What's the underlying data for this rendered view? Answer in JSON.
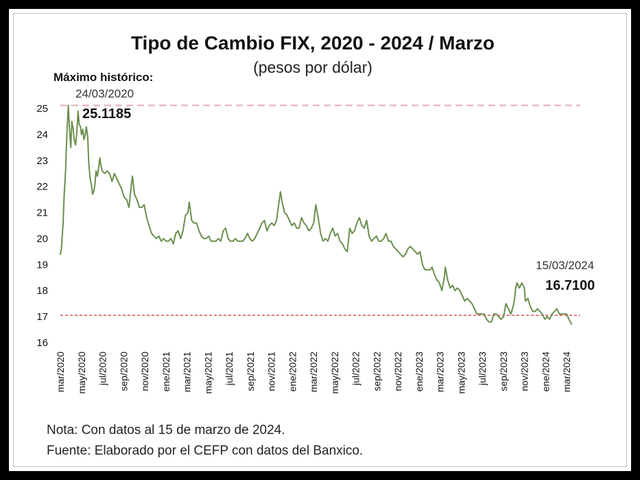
{
  "chart_data": {
    "type": "line",
    "title": "Tipo de Cambio FIX, 2020 - 2024 / Marzo",
    "subtitle": "(pesos por dólar)",
    "xlabel": "",
    "ylabel": "",
    "ylim": [
      16,
      25.3
    ],
    "yticks": [
      "16",
      "17",
      "18",
      "19",
      "20",
      "21",
      "22",
      "23",
      "24",
      "25"
    ],
    "grid": false,
    "legend": "none",
    "x_tick_labels": [
      "mar/2020",
      "may/2020",
      "jul/2020",
      "sep/2020",
      "nov/2020",
      "ene/2021",
      "mar/2021",
      "may/2021",
      "jul/2021",
      "sep/2021",
      "nov/2021",
      "ene/2022",
      "mar/2022",
      "may/2022",
      "jul/2022",
      "sep/2022",
      "nov/2022",
      "ene/2023",
      "mar/2023",
      "may/2023",
      "jul/2023",
      "sep/2023",
      "nov/2023",
      "ene/2024",
      "mar/2024"
    ],
    "series": [
      {
        "color": "#6b8f4e",
        "points": [
          [
            "2020-03-01",
            19.4
          ],
          [
            "2020-03-04",
            19.6
          ],
          [
            "2020-03-09",
            20.6
          ],
          [
            "2020-03-12",
            21.7
          ],
          [
            "2020-03-16",
            22.6
          ],
          [
            "2020-03-20",
            24.1
          ],
          [
            "2020-03-24",
            25.1185
          ],
          [
            "2020-03-27",
            24.3
          ],
          [
            "2020-03-31",
            23.5
          ],
          [
            "2020-04-03",
            24.5
          ],
          [
            "2020-04-07",
            24.2
          ],
          [
            "2020-04-10",
            23.8
          ],
          [
            "2020-04-14",
            23.6
          ],
          [
            "2020-04-17",
            24.0
          ],
          [
            "2020-04-21",
            24.9
          ],
          [
            "2020-04-24",
            24.4
          ],
          [
            "2020-04-28",
            24.3
          ],
          [
            "2020-05-01",
            24.0
          ],
          [
            "2020-05-05",
            24.2
          ],
          [
            "2020-05-08",
            23.8
          ],
          [
            "2020-05-12",
            24.0
          ],
          [
            "2020-05-15",
            24.3
          ],
          [
            "2020-05-19",
            23.9
          ],
          [
            "2020-05-22",
            22.9
          ],
          [
            "2020-05-26",
            22.3
          ],
          [
            "2020-05-29",
            22.1
          ],
          [
            "2020-06-02",
            21.7
          ],
          [
            "2020-06-05",
            21.8
          ],
          [
            "2020-06-09",
            22.1
          ],
          [
            "2020-06-12",
            22.6
          ],
          [
            "2020-06-16",
            22.4
          ],
          [
            "2020-06-19",
            22.7
          ],
          [
            "2020-06-23",
            23.1
          ],
          [
            "2020-06-26",
            22.8
          ],
          [
            "2020-06-30",
            22.6
          ],
          [
            "2020-07-07",
            22.5
          ],
          [
            "2020-07-14",
            22.6
          ],
          [
            "2020-07-21",
            22.5
          ],
          [
            "2020-07-28",
            22.2
          ],
          [
            "2020-08-04",
            22.5
          ],
          [
            "2020-08-11",
            22.3
          ],
          [
            "2020-08-18",
            22.1
          ],
          [
            "2020-08-25",
            21.9
          ],
          [
            "2020-09-01",
            21.6
          ],
          [
            "2020-09-08",
            21.5
          ],
          [
            "2020-09-15",
            21.2
          ],
          [
            "2020-09-22",
            22.1
          ],
          [
            "2020-09-25",
            22.4
          ],
          [
            "2020-10-01",
            21.7
          ],
          [
            "2020-10-08",
            21.5
          ],
          [
            "2020-10-15",
            21.2
          ],
          [
            "2020-10-22",
            21.2
          ],
          [
            "2020-10-29",
            21.3
          ],
          [
            "2020-11-05",
            20.8
          ],
          [
            "2020-11-12",
            20.5
          ],
          [
            "2020-11-19",
            20.2
          ],
          [
            "2020-11-26",
            20.1
          ],
          [
            "2020-12-03",
            20.0
          ],
          [
            "2020-12-10",
            20.1
          ],
          [
            "2020-12-17",
            19.9
          ],
          [
            "2020-12-24",
            20.0
          ],
          [
            "2020-12-31",
            19.9
          ],
          [
            "2021-01-07",
            19.9
          ],
          [
            "2021-01-14",
            20.0
          ],
          [
            "2021-01-21",
            19.8
          ],
          [
            "2021-01-28",
            20.2
          ],
          [
            "2021-02-04",
            20.3
          ],
          [
            "2021-02-11",
            20.0
          ],
          [
            "2021-02-18",
            20.3
          ],
          [
            "2021-02-25",
            20.9
          ],
          [
            "2021-03-04",
            21.0
          ],
          [
            "2021-03-08",
            21.4
          ],
          [
            "2021-03-15",
            20.7
          ],
          [
            "2021-03-22",
            20.6
          ],
          [
            "2021-03-29",
            20.6
          ],
          [
            "2021-04-05",
            20.3
          ],
          [
            "2021-04-12",
            20.1
          ],
          [
            "2021-04-19",
            20.0
          ],
          [
            "2021-04-26",
            20.0
          ],
          [
            "2021-05-03",
            20.1
          ],
          [
            "2021-05-10",
            19.9
          ],
          [
            "2021-05-17",
            19.9
          ],
          [
            "2021-05-24",
            19.9
          ],
          [
            "2021-05-31",
            20.0
          ],
          [
            "2021-06-07",
            19.9
          ],
          [
            "2021-06-14",
            20.3
          ],
          [
            "2021-06-21",
            20.4
          ],
          [
            "2021-06-28",
            20.0
          ],
          [
            "2021-07-05",
            19.9
          ],
          [
            "2021-07-12",
            19.9
          ],
          [
            "2021-07-19",
            20.0
          ],
          [
            "2021-07-26",
            19.9
          ],
          [
            "2021-08-02",
            19.9
          ],
          [
            "2021-08-09",
            19.9
          ],
          [
            "2021-08-16",
            20.0
          ],
          [
            "2021-08-23",
            20.2
          ],
          [
            "2021-08-30",
            20.0
          ],
          [
            "2021-09-06",
            19.9
          ],
          [
            "2021-09-13",
            20.0
          ],
          [
            "2021-09-20",
            20.2
          ],
          [
            "2021-09-27",
            20.4
          ],
          [
            "2021-10-04",
            20.6
          ],
          [
            "2021-10-11",
            20.7
          ],
          [
            "2021-10-18",
            20.3
          ],
          [
            "2021-10-25",
            20.5
          ],
          [
            "2021-11-01",
            20.6
          ],
          [
            "2021-11-08",
            20.5
          ],
          [
            "2021-11-15",
            20.7
          ],
          [
            "2021-11-22",
            21.4
          ],
          [
            "2021-11-26",
            21.8
          ],
          [
            "2021-12-01",
            21.4
          ],
          [
            "2021-12-08",
            21.0
          ],
          [
            "2021-12-15",
            20.9
          ],
          [
            "2021-12-22",
            20.7
          ],
          [
            "2021-12-29",
            20.5
          ],
          [
            "2022-01-05",
            20.6
          ],
          [
            "2022-01-12",
            20.4
          ],
          [
            "2022-01-19",
            20.4
          ],
          [
            "2022-01-26",
            20.8
          ],
          [
            "2022-02-02",
            20.6
          ],
          [
            "2022-02-09",
            20.5
          ],
          [
            "2022-02-16",
            20.3
          ],
          [
            "2022-02-23",
            20.4
          ],
          [
            "2022-03-02",
            20.6
          ],
          [
            "2022-03-08",
            21.3
          ],
          [
            "2022-03-15",
            20.8
          ],
          [
            "2022-03-22",
            20.2
          ],
          [
            "2022-03-29",
            19.9
          ],
          [
            "2022-04-05",
            20.0
          ],
          [
            "2022-04-12",
            19.9
          ],
          [
            "2022-04-19",
            20.2
          ],
          [
            "2022-04-26",
            20.4
          ],
          [
            "2022-05-03",
            20.1
          ],
          [
            "2022-05-10",
            20.2
          ],
          [
            "2022-05-17",
            19.9
          ],
          [
            "2022-05-24",
            19.8
          ],
          [
            "2022-05-31",
            19.6
          ],
          [
            "2022-06-07",
            19.5
          ],
          [
            "2022-06-14",
            20.4
          ],
          [
            "2022-06-21",
            20.2
          ],
          [
            "2022-06-28",
            20.3
          ],
          [
            "2022-07-05",
            20.6
          ],
          [
            "2022-07-12",
            20.8
          ],
          [
            "2022-07-19",
            20.5
          ],
          [
            "2022-07-26",
            20.4
          ],
          [
            "2022-08-02",
            20.7
          ],
          [
            "2022-08-09",
            20.1
          ],
          [
            "2022-08-16",
            19.9
          ],
          [
            "2022-08-23",
            20.0
          ],
          [
            "2022-08-30",
            20.1
          ],
          [
            "2022-09-06",
            19.9
          ],
          [
            "2022-09-13",
            19.9
          ],
          [
            "2022-09-20",
            20.0
          ],
          [
            "2022-09-27",
            20.2
          ],
          [
            "2022-10-04",
            19.9
          ],
          [
            "2022-10-11",
            19.9
          ],
          [
            "2022-10-18",
            19.7
          ],
          [
            "2022-10-25",
            19.6
          ],
          [
            "2022-11-01",
            19.5
          ],
          [
            "2022-11-08",
            19.4
          ],
          [
            "2022-11-15",
            19.3
          ],
          [
            "2022-11-22",
            19.4
          ],
          [
            "2022-11-29",
            19.6
          ],
          [
            "2022-12-06",
            19.7
          ],
          [
            "2022-12-13",
            19.6
          ],
          [
            "2022-12-20",
            19.5
          ],
          [
            "2022-12-27",
            19.4
          ],
          [
            "2023-01-03",
            19.5
          ],
          [
            "2023-01-10",
            19.0
          ],
          [
            "2023-01-17",
            18.8
          ],
          [
            "2023-01-24",
            18.8
          ],
          [
            "2023-01-31",
            18.8
          ],
          [
            "2023-02-07",
            18.9
          ],
          [
            "2023-02-14",
            18.6
          ],
          [
            "2023-02-21",
            18.4
          ],
          [
            "2023-02-28",
            18.3
          ],
          [
            "2023-03-07",
            18.0
          ],
          [
            "2023-03-14",
            18.5
          ],
          [
            "2023-03-17",
            18.9
          ],
          [
            "2023-03-24",
            18.4
          ],
          [
            "2023-03-31",
            18.1
          ],
          [
            "2023-04-07",
            18.2
          ],
          [
            "2023-04-14",
            18.0
          ],
          [
            "2023-04-21",
            18.1
          ],
          [
            "2023-04-28",
            18.0
          ],
          [
            "2023-05-05",
            17.8
          ],
          [
            "2023-05-12",
            17.6
          ],
          [
            "2023-05-19",
            17.7
          ],
          [
            "2023-05-26",
            17.6
          ],
          [
            "2023-06-02",
            17.5
          ],
          [
            "2023-06-09",
            17.3
          ],
          [
            "2023-06-16",
            17.1
          ],
          [
            "2023-06-23",
            17.1
          ],
          [
            "2023-06-30",
            17.1
          ],
          [
            "2023-07-07",
            17.1
          ],
          [
            "2023-07-14",
            16.9
          ],
          [
            "2023-07-21",
            16.8
          ],
          [
            "2023-07-28",
            16.8
          ],
          [
            "2023-08-04",
            17.1
          ],
          [
            "2023-08-11",
            17.1
          ],
          [
            "2023-08-18",
            17.0
          ],
          [
            "2023-08-25",
            16.9
          ],
          [
            "2023-09-01",
            17.0
          ],
          [
            "2023-09-08",
            17.5
          ],
          [
            "2023-09-15",
            17.3
          ],
          [
            "2023-09-22",
            17.1
          ],
          [
            "2023-09-29",
            17.4
          ],
          [
            "2023-10-03",
            17.7
          ],
          [
            "2023-10-06",
            18.1
          ],
          [
            "2023-10-10",
            18.3
          ],
          [
            "2023-10-17",
            18.1
          ],
          [
            "2023-10-24",
            18.3
          ],
          [
            "2023-10-31",
            18.1
          ],
          [
            "2023-11-03",
            17.6
          ],
          [
            "2023-11-10",
            17.7
          ],
          [
            "2023-11-17",
            17.4
          ],
          [
            "2023-11-24",
            17.2
          ],
          [
            "2023-12-01",
            17.2
          ],
          [
            "2023-12-08",
            17.3
          ],
          [
            "2023-12-15",
            17.2
          ],
          [
            "2023-12-22",
            17.1
          ],
          [
            "2023-12-29",
            16.9
          ],
          [
            "2024-01-05",
            17.0
          ],
          [
            "2024-01-12",
            16.9
          ],
          [
            "2024-01-19",
            17.1
          ],
          [
            "2024-01-26",
            17.2
          ],
          [
            "2024-02-02",
            17.3
          ],
          [
            "2024-02-09",
            17.1
          ],
          [
            "2024-02-16",
            17.1
          ],
          [
            "2024-02-23",
            17.1
          ],
          [
            "2024-03-01",
            17.1
          ],
          [
            "2024-03-08",
            16.9
          ],
          [
            "2024-03-15",
            16.71
          ]
        ]
      }
    ],
    "reference_lines": [
      {
        "value": 25.1185,
        "color": "#e8b4bc",
        "style": "dashed"
      },
      {
        "value": 17.05,
        "color": "#d94040",
        "style": "dotted"
      }
    ],
    "annotations": [
      {
        "heading": "Máximo histórico:",
        "date": "24/03/2020",
        "value": "25.1185"
      },
      {
        "heading": "",
        "date": "15/03/2024",
        "value": "16.7100"
      }
    ]
  },
  "notes": {
    "nota": "Nota: Con datos al 15 de marzo de 2024.",
    "fuente": "Fuente: Elaborado por el CEFP con datos del Banxico."
  }
}
